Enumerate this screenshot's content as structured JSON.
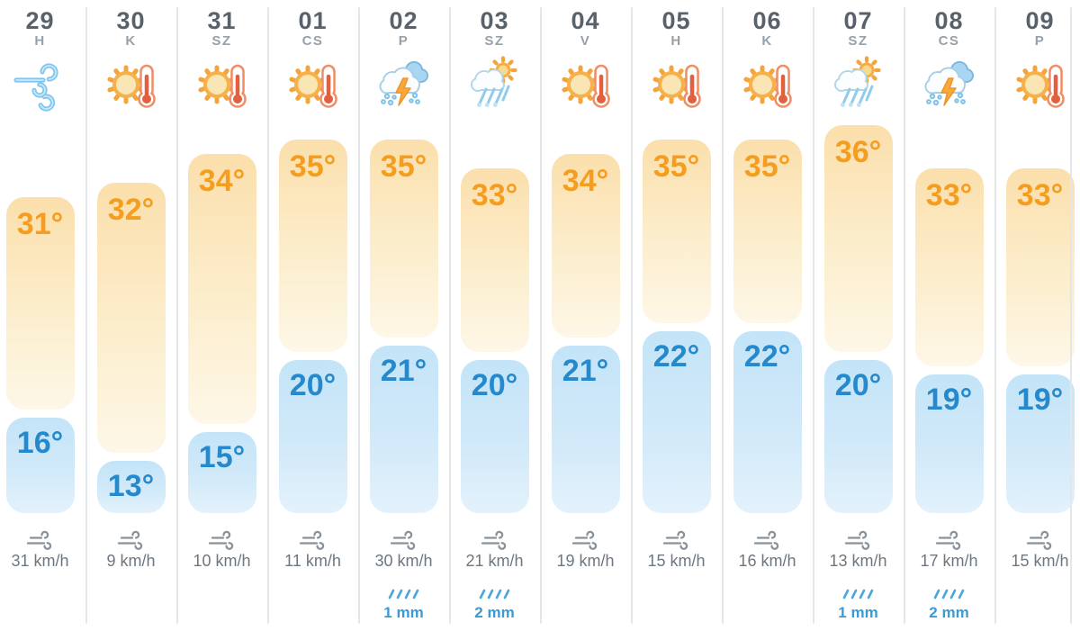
{
  "widget_title": "daily-weather-forecast",
  "colors": {
    "high_temp_text": "#F49D1E",
    "low_temp_text": "#2589CB",
    "high_pill_top": "#FBDFAC",
    "low_pill_top": "#C3E4F8",
    "date_text": "#59626B",
    "day_text": "#97A1AA",
    "wind_text": "#6E777F",
    "precip_text": "#3A9AD5",
    "separator": "#E4E7E9"
  },
  "chart_data": {
    "type": "bar",
    "note": "temperature range pills; values in °C",
    "categories": [
      "29 H",
      "30 K",
      "31 SZ",
      "01 CS",
      "02 P",
      "03 SZ",
      "04 V",
      "05 H",
      "06 K",
      "07 SZ",
      "08 CS",
      "09 P"
    ],
    "series": [
      {
        "name": "high",
        "values": [
          31,
          32,
          34,
          35,
          35,
          33,
          34,
          35,
          35,
          36,
          33,
          33
        ]
      },
      {
        "name": "low",
        "values": [
          16,
          13,
          15,
          20,
          21,
          20,
          21,
          22,
          22,
          20,
          19,
          19
        ]
      }
    ]
  },
  "columns": [
    {
      "date": "29",
      "day": "H",
      "icon": "wind",
      "high": 31,
      "low": 16,
      "high_label": "31°",
      "low_label": "16°",
      "wind_label": "31 km/h",
      "precip_label": null
    },
    {
      "date": "30",
      "day": "K",
      "icon": "sun-thermo",
      "high": 32,
      "low": 13,
      "high_label": "32°",
      "low_label": "13°",
      "wind_label": "9 km/h",
      "precip_label": null
    },
    {
      "date": "31",
      "day": "SZ",
      "icon": "sun-thermo",
      "high": 34,
      "low": 15,
      "high_label": "34°",
      "low_label": "15°",
      "wind_label": "10 km/h",
      "precip_label": null
    },
    {
      "date": "01",
      "day": "CS",
      "icon": "sun-thermo",
      "high": 35,
      "low": 20,
      "high_label": "35°",
      "low_label": "20°",
      "wind_label": "11 km/h",
      "precip_label": null
    },
    {
      "date": "02",
      "day": "P",
      "icon": "storm",
      "high": 35,
      "low": 21,
      "high_label": "35°",
      "low_label": "21°",
      "wind_label": "30 km/h",
      "precip_label": "1 mm"
    },
    {
      "date": "03",
      "day": "SZ",
      "icon": "rain-sun",
      "high": 33,
      "low": 20,
      "high_label": "33°",
      "low_label": "20°",
      "wind_label": "21 km/h",
      "precip_label": "2 mm"
    },
    {
      "date": "04",
      "day": "V",
      "icon": "sun-thermo",
      "high": 34,
      "low": 21,
      "high_label": "34°",
      "low_label": "21°",
      "wind_label": "19 km/h",
      "precip_label": null
    },
    {
      "date": "05",
      "day": "H",
      "icon": "sun-thermo",
      "high": 35,
      "low": 22,
      "high_label": "35°",
      "low_label": "22°",
      "wind_label": "15 km/h",
      "precip_label": null
    },
    {
      "date": "06",
      "day": "K",
      "icon": "sun-thermo",
      "high": 35,
      "low": 22,
      "high_label": "35°",
      "low_label": "22°",
      "wind_label": "16 km/h",
      "precip_label": null
    },
    {
      "date": "07",
      "day": "SZ",
      "icon": "rain-sun",
      "high": 36,
      "low": 20,
      "high_label": "36°",
      "low_label": "20°",
      "wind_label": "13 km/h",
      "precip_label": "1 mm"
    },
    {
      "date": "08",
      "day": "CS",
      "icon": "storm",
      "high": 33,
      "low": 19,
      "high_label": "33°",
      "low_label": "19°",
      "wind_label": "17 km/h",
      "precip_label": "2 mm"
    },
    {
      "date": "09",
      "day": "P",
      "icon": "sun-thermo",
      "high": 33,
      "low": 19,
      "high_label": "33°",
      "low_label": "19°",
      "wind_label": "15 km/h",
      "precip_label": null
    }
  ]
}
